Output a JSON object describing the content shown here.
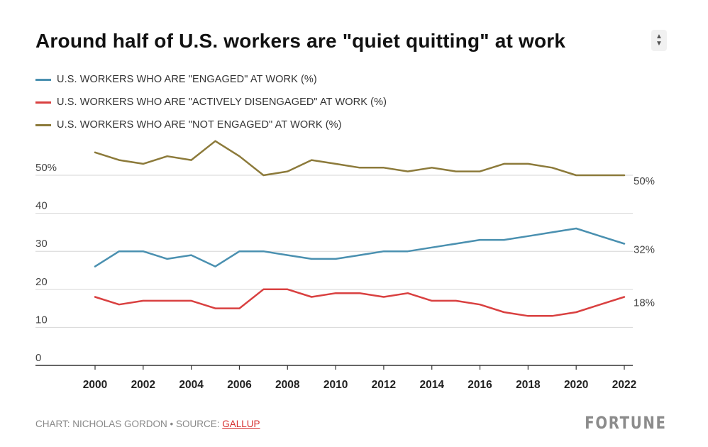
{
  "header": {
    "title": "Around half of U.S. workers are \"quiet quitting\" at work"
  },
  "colors": {
    "engaged": "#4a90b0",
    "actively_disengaged": "#d94040",
    "not_engaged": "#8c7a3a",
    "grid": "#d6d6d6",
    "axis": "#333333"
  },
  "chart_data": {
    "type": "line",
    "title": "Around half of U.S. workers are \"quiet quitting\" at work",
    "xlabel": "",
    "ylabel": "",
    "xlim": [
      2000,
      2022
    ],
    "ylim": [
      0,
      60
    ],
    "x": [
      2000,
      2001,
      2002,
      2003,
      2004,
      2005,
      2006,
      2007,
      2008,
      2009,
      2010,
      2011,
      2012,
      2013,
      2014,
      2015,
      2016,
      2017,
      2018,
      2019,
      2020,
      2021,
      2022
    ],
    "x_ticks": [
      "2000",
      "2002",
      "2004",
      "2006",
      "2008",
      "2010",
      "2012",
      "2014",
      "2016",
      "2018",
      "2020",
      "2022"
    ],
    "y_ticks": [
      {
        "value": 0,
        "label": "0"
      },
      {
        "value": 10,
        "label": "10"
      },
      {
        "value": 20,
        "label": "20"
      },
      {
        "value": 30,
        "label": "30"
      },
      {
        "value": 40,
        "label": "40"
      },
      {
        "value": 50,
        "label": "50%"
      }
    ],
    "series": [
      {
        "key": "not_engaged",
        "name": "U.S. WORKERS WHO ARE \"NOT ENGAGED\" AT WORK (%)",
        "values": [
          56,
          54,
          53,
          55,
          54,
          59,
          55,
          50,
          51,
          54,
          53,
          52,
          52,
          51,
          52,
          51,
          51,
          53,
          53,
          52,
          50,
          50,
          50
        ],
        "end_label": "50%"
      },
      {
        "key": "engaged",
        "name": "U.S. WORKERS WHO ARE \"ENGAGED\" AT WORK (%)",
        "values": [
          26,
          30,
          30,
          28,
          29,
          26,
          30,
          30,
          29,
          28,
          28,
          29,
          30,
          30,
          31,
          32,
          33,
          33,
          34,
          35,
          36,
          34,
          32
        ],
        "end_label": "32%"
      },
      {
        "key": "actively_disengaged",
        "name": "U.S. WORKERS WHO ARE \"ACTIVELY DISENGAGED\" AT WORK (%)",
        "values": [
          18,
          16,
          17,
          17,
          17,
          15,
          15,
          20,
          20,
          18,
          19,
          19,
          18,
          19,
          17,
          17,
          16,
          14,
          13,
          13,
          14,
          16,
          18
        ],
        "end_label": "18%"
      }
    ],
    "legend_order": [
      "engaged",
      "actively_disengaged",
      "not_engaged"
    ],
    "legend": {
      "engaged": "U.S. WORKERS WHO ARE \"ENGAGED\" AT WORK (%)",
      "actively_disengaged": "U.S. WORKERS WHO ARE \"ACTIVELY DISENGAGED\" AT WORK (%)",
      "not_engaged": "U.S. WORKERS WHO ARE \"NOT ENGAGED\" AT WORK (%)"
    }
  },
  "footer": {
    "credit_prefix": "CHART: NICHOLAS GORDON • SOURCE: ",
    "source_link": "GALLUP",
    "brand": "FORTUNE"
  }
}
